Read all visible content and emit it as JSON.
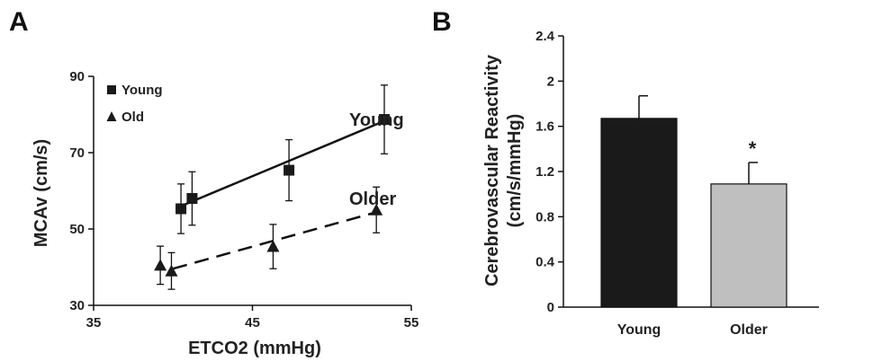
{
  "panels": {
    "a_label": "A",
    "b_label": "B"
  },
  "chart_data": [
    {
      "type": "scatter",
      "panel": "A",
      "xlabel": "ETCO2 (mmHg)",
      "ylabel": "MCAv (cm/s)",
      "xlim": [
        35,
        55
      ],
      "ylim": [
        30,
        90
      ],
      "xticks": [
        "35",
        "45",
        "55"
      ],
      "yticks": [
        "30",
        "50",
        "70",
        "90"
      ],
      "legend": {
        "placement": "top-left",
        "entries": [
          "Young",
          "Old"
        ]
      },
      "annotations": [
        "Young",
        "Older"
      ],
      "series": [
        {
          "name": "Young",
          "marker": "square",
          "line": "solid",
          "x": [
            40.5,
            41.2,
            47.3,
            53.3
          ],
          "y": [
            55.3,
            58.0,
            65.4,
            78.7
          ],
          "err": [
            6.5,
            7.0,
            8.0,
            9.0
          ],
          "fit": [
            [
              40.5,
              56.0
            ],
            [
              53.3,
              78.3
            ]
          ]
        },
        {
          "name": "Old",
          "marker": "triangle",
          "line": "dashed",
          "x": [
            39.2,
            39.9,
            46.3,
            52.8
          ],
          "y": [
            40.5,
            39.0,
            45.4,
            55.0
          ],
          "err": [
            5.0,
            4.8,
            5.8,
            6.0
          ],
          "fit": [
            [
              40.0,
              39.6
            ],
            [
              52.8,
              54.4
            ]
          ]
        }
      ]
    },
    {
      "type": "bar",
      "panel": "B",
      "categories": [
        "Young",
        "Older"
      ],
      "values": [
        1.67,
        1.09
      ],
      "errors": [
        0.2,
        0.19
      ],
      "colors": [
        "#1a1a1a",
        "#bfbfbf"
      ],
      "ylabel": "Cerebrovascular Reactivity\n(cm/s/mmHg)",
      "ylabel_lines": [
        "Cerebrovascular Reactivity",
        "(cm/s/mmHg)"
      ],
      "ylim": [
        0,
        2.4
      ],
      "yticks": [
        "0",
        "0.4",
        "0.8",
        "1.2",
        "1.6",
        "2",
        "2.4"
      ],
      "significance": [
        "",
        "*"
      ]
    }
  ]
}
